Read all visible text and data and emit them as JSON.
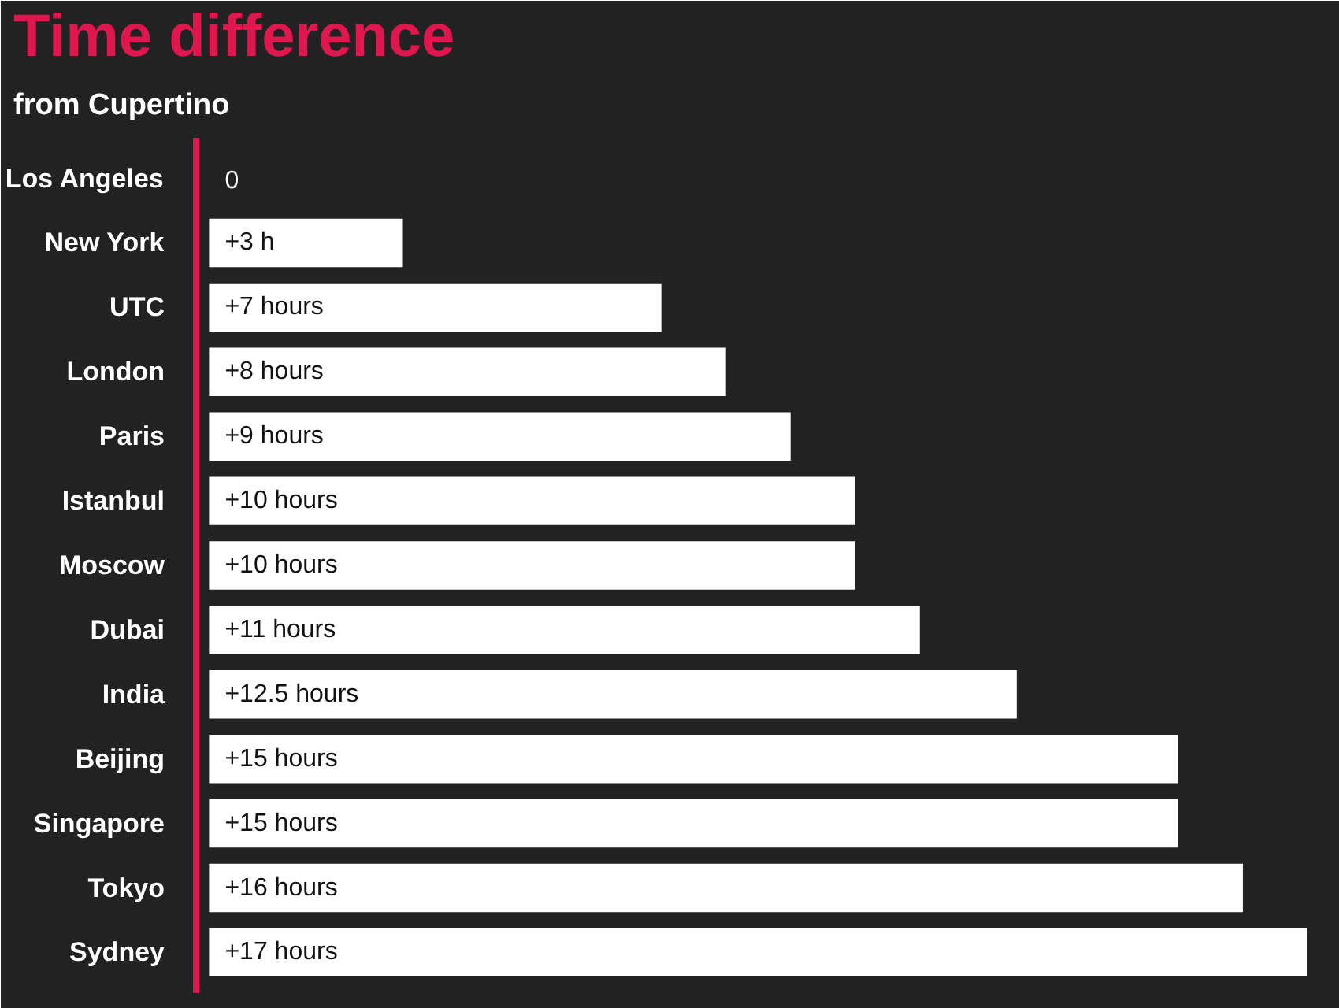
{
  "chart_data": {
    "type": "bar",
    "orientation": "horizontal",
    "title": "Time difference",
    "subtitle": "from Cupertino",
    "categories": [
      "Los Angeles",
      "New York",
      "UTC",
      "London",
      "Paris",
      "Istanbul",
      "Moscow",
      "Dubai",
      "India",
      "Beijing",
      "Singapore",
      "Tokyo",
      "Sydney"
    ],
    "values": [
      0,
      3,
      7,
      8,
      9,
      10,
      10,
      11,
      12.5,
      15,
      15,
      16,
      17
    ],
    "value_labels": [
      "0",
      "+3 h",
      "+7 hours",
      "+8 hours",
      "+9 hours",
      "+10 hours",
      "+10 hours",
      "+11 hours",
      "+12.5 hours",
      "+15 hours",
      "+15 hours",
      "+16 hours",
      "+17 hours"
    ],
    "color": "#ffffff",
    "grid": false
  }
}
